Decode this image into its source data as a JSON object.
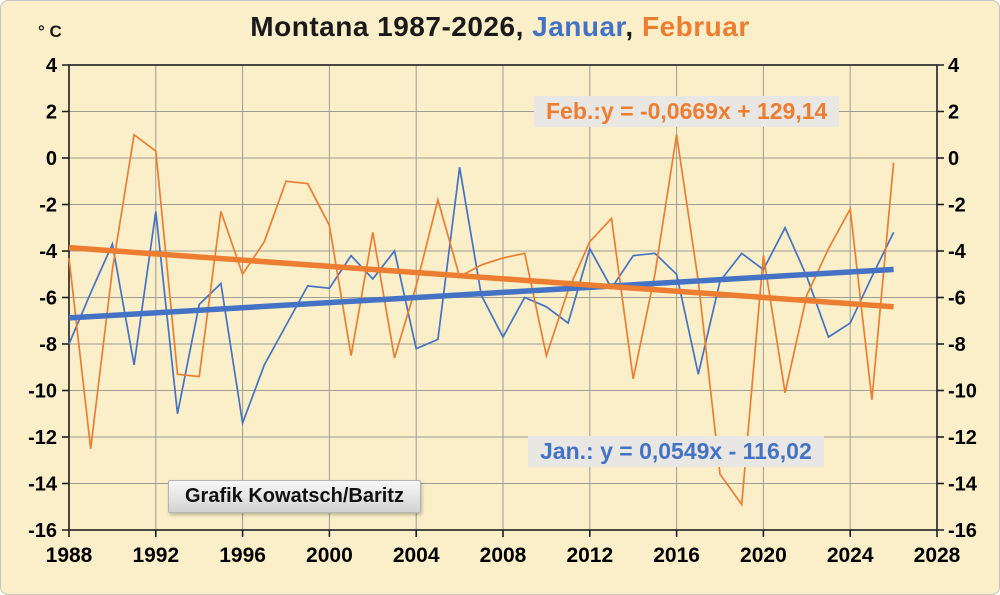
{
  "title": {
    "prefix": "Montana 1987-2026, ",
    "januar": "Januar",
    "separator": ", ",
    "februar": "Februar"
  },
  "y_axis_unit": "° C",
  "annotations": {
    "feb_equation": "Feb.:y = -0,0669x + 129,14",
    "jan_equation": "Jan.: y = 0,0549x - 116,02",
    "credit": "Grafik Kowatsch/Baritz"
  },
  "colors": {
    "januar": "#4472C4",
    "februar": "#ED7D31",
    "background": "#FBEFC9",
    "grid": "#9d9d94",
    "axis": "#1f1f1f",
    "label_background": "#E9E7E3",
    "title_text": "#1a1a1a"
  },
  "chart_data": {
    "type": "line",
    "title": "Montana 1987-2026, Januar, Februar",
    "ylabel": "° C",
    "grid": true,
    "x_axis": {
      "min": 1988,
      "max": 2028,
      "tick_step": 4,
      "ticks": [
        1988,
        1992,
        1996,
        2000,
        2004,
        2008,
        2012,
        2016,
        2020,
        2024,
        2028
      ]
    },
    "y_axis": {
      "min": -16,
      "max": 4,
      "tick_step": 2,
      "ticks": [
        4,
        2,
        0,
        -2,
        -4,
        -6,
        -8,
        -10,
        -12,
        -14,
        -16
      ]
    },
    "x": [
      1988,
      1989,
      1990,
      1991,
      1992,
      1993,
      1994,
      1995,
      1996,
      1997,
      1998,
      1999,
      2000,
      2001,
      2002,
      2003,
      2004,
      2005,
      2006,
      2007,
      2008,
      2009,
      2010,
      2011,
      2012,
      2013,
      2014,
      2015,
      2016,
      2017,
      2018,
      2019,
      2020,
      2021,
      2022,
      2023,
      2024,
      2025,
      2026
    ],
    "series": [
      {
        "name": "Januar",
        "color": "#4472C4",
        "values": [
          -8.0,
          -5.8,
          -3.7,
          -8.9,
          -2.3,
          -11.0,
          -6.3,
          -5.4,
          -11.4,
          -8.9,
          -7.2,
          -5.5,
          -5.6,
          -4.2,
          -5.2,
          -4.0,
          -8.2,
          -7.8,
          -0.4,
          -5.9,
          -7.7,
          -6.0,
          -6.4,
          -7.1,
          -3.9,
          -5.6,
          -4.2,
          -4.1,
          -5.0,
          -9.3,
          -5.3,
          -4.1,
          -4.8,
          -3.0,
          -5.1,
          -7.7,
          -7.1,
          -5.1,
          -3.2
        ]
      },
      {
        "name": "Februar",
        "color": "#ED7D31",
        "values": [
          -4.3,
          -12.5,
          -4.8,
          1.0,
          0.3,
          -9.3,
          -9.4,
          -2.3,
          -5.0,
          -3.6,
          -1.0,
          -1.1,
          -2.9,
          -8.5,
          -3.2,
          -8.6,
          -5.5,
          -1.8,
          -5.1,
          -4.6,
          -4.3,
          -4.1,
          -8.5,
          -5.7,
          -3.6,
          -2.6,
          -9.5,
          -5.0,
          1.0,
          -5.3,
          -13.6,
          -14.9,
          -4.2,
          -10.1,
          -5.9,
          -3.9,
          -2.2,
          -10.4,
          -0.2
        ]
      }
    ],
    "trendlines": [
      {
        "for": "Januar",
        "color": "#4472C4",
        "slope": 0.0549,
        "intercept": -116.02,
        "x_start": 1988,
        "x_end": 2026,
        "label": "Jan.: y = 0,0549x - 116,02"
      },
      {
        "for": "Februar",
        "color": "#ED7D31",
        "slope": -0.0669,
        "intercept": 129.14,
        "x_start": 1988,
        "x_end": 2026,
        "label": "Feb.:y = -0,0669x + 129,14"
      }
    ],
    "legend_position": "in-title"
  }
}
